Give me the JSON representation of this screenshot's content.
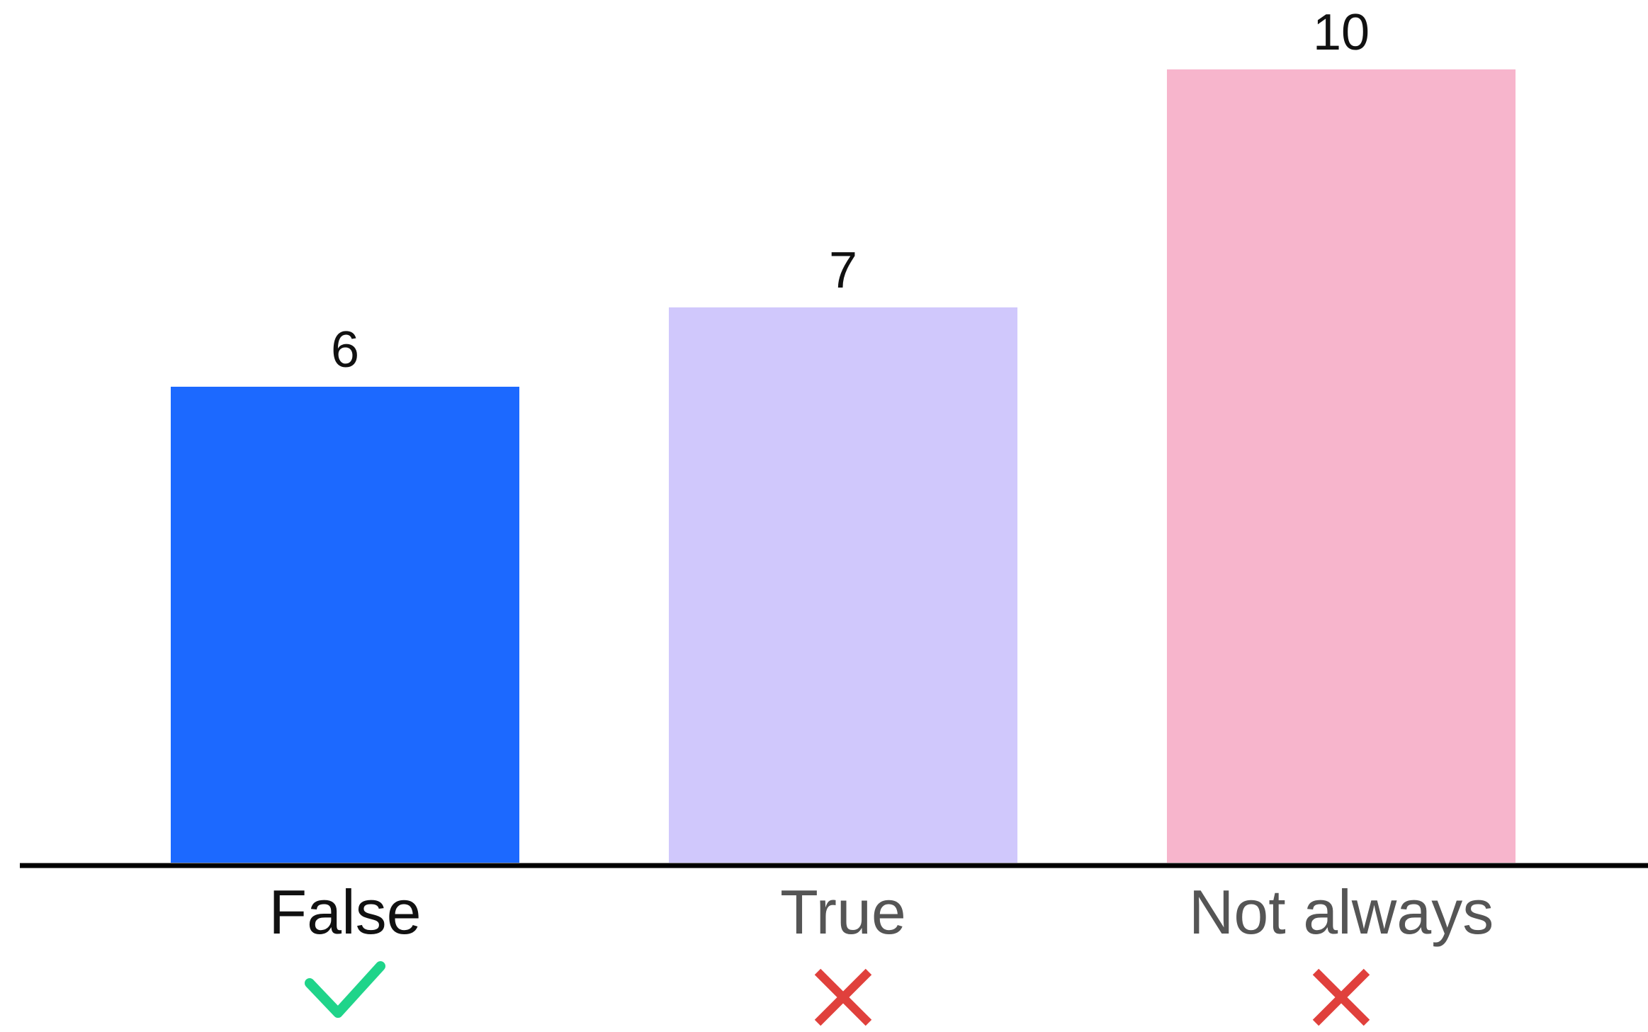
{
  "chart_data": {
    "type": "bar",
    "categories": [
      "False",
      "True",
      "Not always"
    ],
    "values": [
      6,
      7,
      10
    ],
    "bar_colors": [
      "#1c69ff",
      "#d0c8fc",
      "#f7b5cc"
    ],
    "label_colors": [
      "#111111",
      "#555555",
      "#555555"
    ],
    "markers": [
      {
        "icon": "check-icon",
        "color": "#1fd48a"
      },
      {
        "icon": "cross-icon",
        "color": "#e0403c"
      },
      {
        "icon": "cross-icon",
        "color": "#e0403c"
      }
    ],
    "ylim": [
      0,
      10
    ],
    "axis_color": "#000000",
    "grid": false,
    "title": "",
    "xlabel": "",
    "ylabel": ""
  }
}
